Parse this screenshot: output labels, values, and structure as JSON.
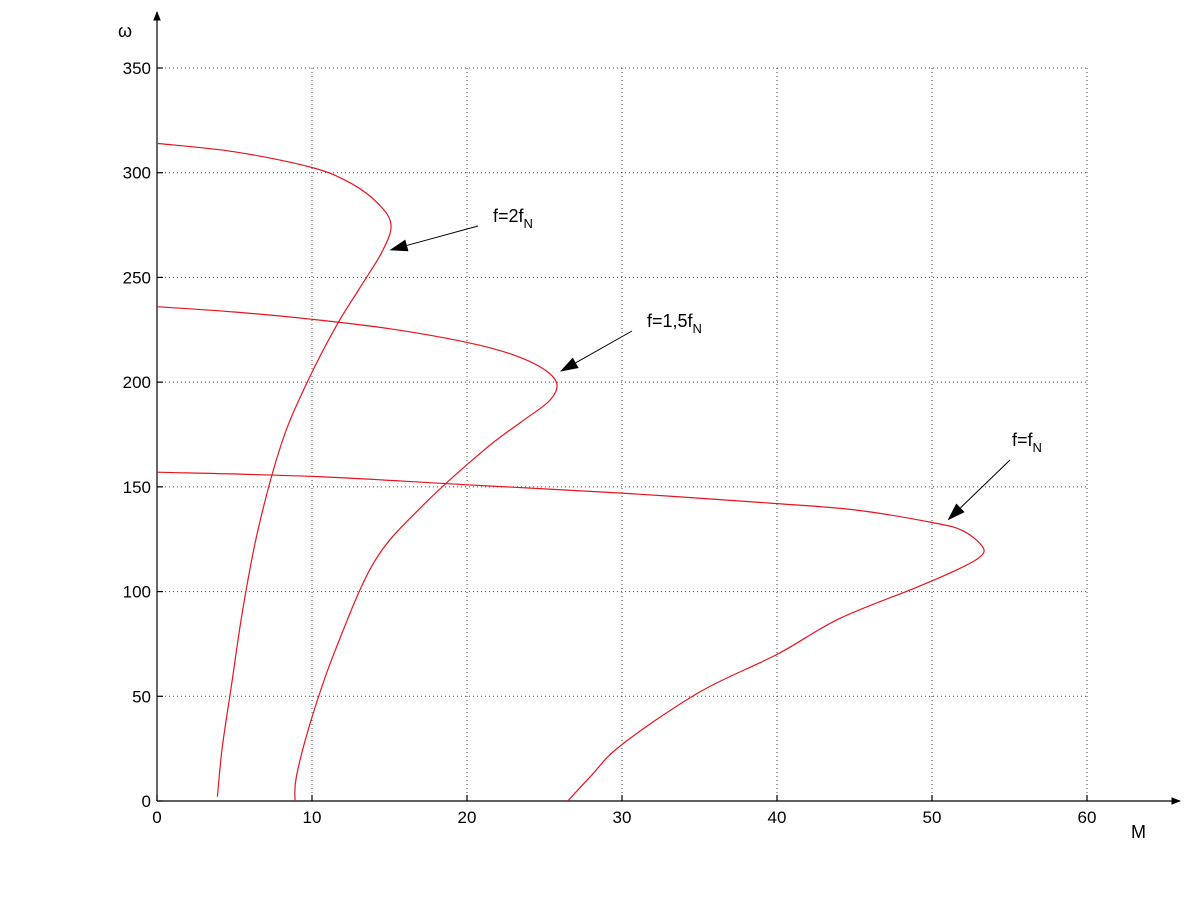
{
  "chart_data": {
    "type": "line",
    "title": "",
    "xlabel": "M",
    "ylabel": "ω",
    "xlim": [
      0,
      60
    ],
    "ylim": [
      0,
      350
    ],
    "xticks": [
      0,
      10,
      20,
      30,
      40,
      50,
      60
    ],
    "yticks": [
      0,
      50,
      100,
      150,
      200,
      250,
      300,
      350
    ],
    "grid": true,
    "series": [
      {
        "label_main": "f=f",
        "label_sub": "N",
        "color": "#e8141e",
        "points": [
          [
            0,
            157
          ],
          [
            10,
            155
          ],
          [
            20,
            151
          ],
          [
            30,
            147
          ],
          [
            40,
            142
          ],
          [
            45,
            139
          ],
          [
            50,
            133
          ],
          [
            52,
            129
          ],
          [
            53.3,
            121
          ],
          [
            53,
            116
          ],
          [
            51.5,
            110
          ],
          [
            49,
            102
          ],
          [
            44,
            87
          ],
          [
            40,
            70
          ],
          [
            35,
            52
          ],
          [
            30,
            27
          ],
          [
            28,
            12
          ],
          [
            26.5,
            0
          ]
        ]
      },
      {
        "label_main": "f=1,5f",
        "label_sub": "N",
        "color": "#e8141e",
        "points": [
          [
            0,
            236
          ],
          [
            5,
            233.5
          ],
          [
            10,
            230
          ],
          [
            15,
            225.5
          ],
          [
            20,
            219
          ],
          [
            23,
            213
          ],
          [
            25,
            206
          ],
          [
            25.8,
            199
          ],
          [
            25.3,
            191
          ],
          [
            23.5,
            181
          ],
          [
            21,
            167
          ],
          [
            17,
            140
          ],
          [
            14,
            114
          ],
          [
            11.5,
            72
          ],
          [
            10,
            40
          ],
          [
            9,
            12
          ],
          [
            8.9,
            0
          ]
        ]
      },
      {
        "label_main": "f=2f",
        "label_sub": "N",
        "color": "#e8141e",
        "points": [
          [
            0,
            314
          ],
          [
            5,
            310
          ],
          [
            10,
            302.5
          ],
          [
            12.5,
            295
          ],
          [
            14.3,
            285
          ],
          [
            15.1,
            275
          ],
          [
            14.5,
            262
          ],
          [
            13,
            244
          ],
          [
            11.5,
            226
          ],
          [
            9.5,
            197
          ],
          [
            8,
            170
          ],
          [
            6.5,
            129
          ],
          [
            5.5,
            90
          ],
          [
            4.8,
            55
          ],
          [
            4.2,
            25
          ],
          [
            3.9,
            2
          ]
        ]
      }
    ],
    "annotations": [
      {
        "main": "f=2f",
        "sub": "N",
        "arrow_to": [
          15,
          263
        ]
      },
      {
        "main": "f=1,5f",
        "sub": "N",
        "arrow_to": [
          26,
          205
        ]
      },
      {
        "main": "f=f",
        "sub": "N",
        "arrow_to": [
          51,
          134
        ]
      }
    ]
  }
}
